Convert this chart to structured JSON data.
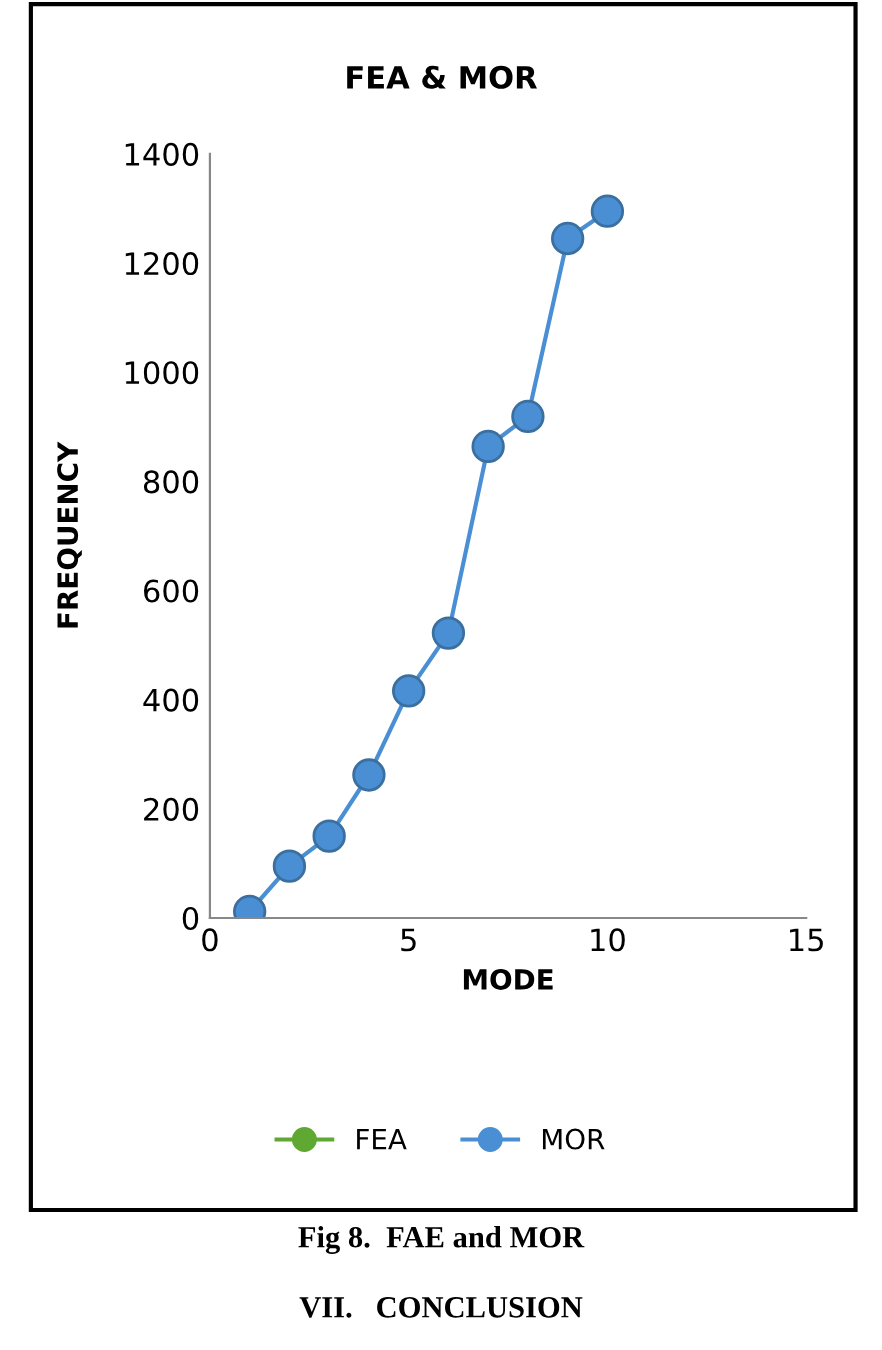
{
  "chart_data": {
    "type": "line",
    "title": "FEA & MOR",
    "xlabel": "MODE",
    "ylabel": "FREQUENCY",
    "x": [
      1,
      2,
      3,
      4,
      5,
      6,
      7,
      8,
      9,
      10
    ],
    "series": [
      {
        "name": "FEA",
        "color": "#5fa832",
        "values": [
          null,
          null,
          null,
          null,
          null,
          null,
          null,
          null,
          null,
          null
        ]
      },
      {
        "name": "MOR",
        "color": "#4a8fd4",
        "values": [
          12,
          95,
          150,
          262,
          416,
          522,
          864,
          919,
          1245,
          1295
        ]
      }
    ],
    "xlim": [
      0,
      15
    ],
    "xticks": [
      0,
      5,
      10,
      15
    ],
    "ylim": [
      0,
      1400
    ],
    "yticks": [
      0,
      200,
      400,
      600,
      800,
      1000,
      1200,
      1400
    ],
    "marker": "circle",
    "line_style": "solid",
    "grid": false,
    "legend": "bottom",
    "annotations": [
      "Fig 8.  FAE and MOR",
      "VII.   CONCLUSION"
    ]
  }
}
